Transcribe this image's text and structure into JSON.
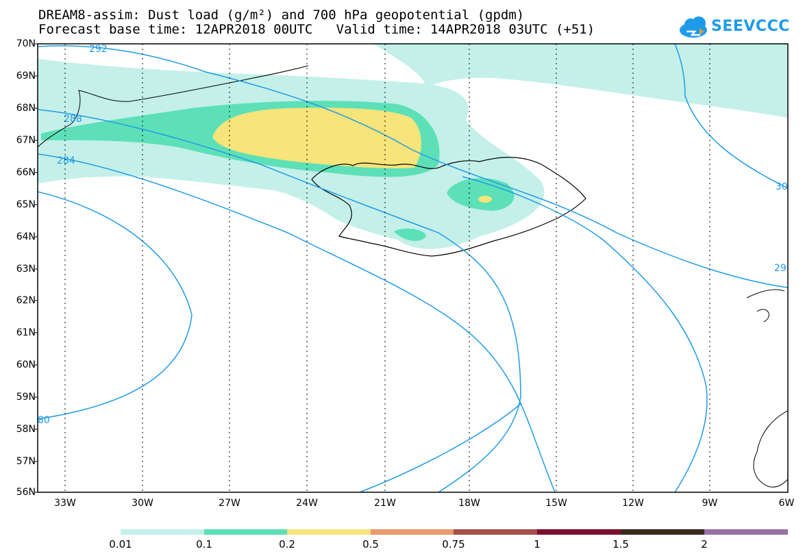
{
  "title": {
    "line1": "DREAM8-assim: Dust load (g/m²) and 700 hPa geopotential (gpdm)",
    "line2": "Forecast base time: 12APR2018 00UTC   Valid time: 14APR2018 03UTC (+51)"
  },
  "logo": {
    "text": "SEEVCCC",
    "icon": "cloud-icon",
    "color": "#1e9be8"
  },
  "lat_labels": [
    "70N",
    "69N",
    "68N",
    "67N",
    "66N",
    "65N",
    "64N",
    "63N",
    "62N",
    "61N",
    "60N",
    "59N",
    "58N",
    "57N",
    "56N"
  ],
  "lon_labels": [
    "33W",
    "30W",
    "27W",
    "24W",
    "21W",
    "18W",
    "15W",
    "12W",
    "9W",
    "6W"
  ],
  "contour_labels": [
    "292",
    "288",
    "284",
    "80",
    "30",
    "29"
  ],
  "legend": {
    "colors": [
      "#c4f0e9",
      "#5de0b7",
      "#f7e47a",
      "#e89a6e",
      "#a4504a",
      "#7b1030",
      "#3a2a1a",
      "#9a72a4"
    ],
    "labels": [
      "0.01",
      "0.1",
      "0.2",
      "0.5",
      "0.75",
      "1",
      "1.5",
      "2"
    ]
  },
  "colors": {
    "contour": "#1e9be8",
    "coast": "#000000"
  }
}
